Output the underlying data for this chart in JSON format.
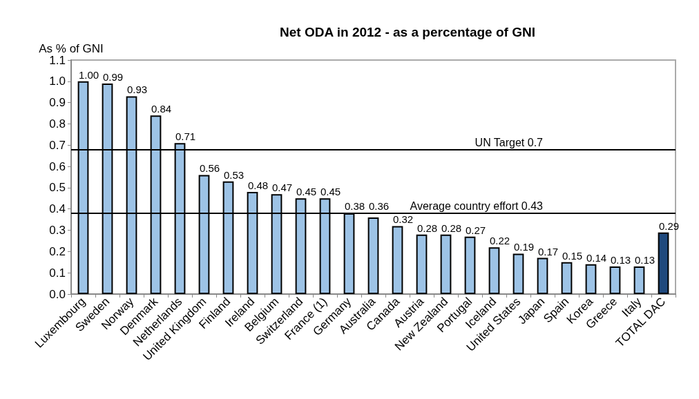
{
  "chart_data": {
    "type": "bar",
    "title": "Net ODA in 2012 - as a percentage of GNI",
    "ylabel": "As % of GNI",
    "categories": [
      "Luxembourg",
      "Sweden",
      "Norway",
      "Denmark",
      "Netherlands",
      "United Kingdom",
      "Finland",
      "Ireland",
      "Belgium",
      "Switzerland",
      "France (1)",
      "Germany",
      "Australia",
      "Canada",
      "Austria",
      "New Zealand",
      "Portugal",
      "Iceland",
      "United States",
      "Japan",
      "Spain",
      "Korea",
      "Greece",
      "Italy",
      "TOTAL DAC"
    ],
    "values": [
      1.0,
      0.99,
      0.93,
      0.84,
      0.71,
      0.56,
      0.53,
      0.48,
      0.47,
      0.45,
      0.45,
      0.38,
      0.36,
      0.32,
      0.28,
      0.28,
      0.27,
      0.22,
      0.19,
      0.17,
      0.15,
      0.14,
      0.13,
      0.13,
      0.29
    ],
    "value_labels": [
      "1.00",
      "0.99",
      "0.93",
      "0.84",
      "0.71",
      "0.56",
      "0.53",
      "0.48",
      "0.47",
      "0.45",
      "0.45",
      "0.38",
      "0.36",
      "0.32",
      "0.28",
      "0.28",
      "0.27",
      "0.22",
      "0.19",
      "0.17",
      "0.15",
      "0.14",
      "0.13",
      "0.13",
      "0.29"
    ],
    "colors": [
      "#9dc3e6",
      "#9dc3e6",
      "#9dc3e6",
      "#9dc3e6",
      "#9dc3e6",
      "#9dc3e6",
      "#9dc3e6",
      "#9dc3e6",
      "#9dc3e6",
      "#9dc3e6",
      "#9dc3e6",
      "#9dc3e6",
      "#9dc3e6",
      "#9dc3e6",
      "#9dc3e6",
      "#9dc3e6",
      "#9dc3e6",
      "#9dc3e6",
      "#9dc3e6",
      "#9dc3e6",
      "#9dc3e6",
      "#9dc3e6",
      "#9dc3e6",
      "#9dc3e6",
      "#1f497d"
    ],
    "ylim": [
      0,
      1.1
    ],
    "yticks": [
      "0.0",
      0.1,
      0.2,
      0.3,
      0.4,
      0.5,
      0.6,
      0.7,
      0.8,
      0.9,
      "1.0",
      1.1
    ],
    "ref_lines": [
      {
        "axis": "y",
        "value": 0.68,
        "label": "UN Target 0.7",
        "color": "#000000"
      },
      {
        "axis": "y",
        "value": 0.38,
        "label": "Average country effort 0.43",
        "color": "#000000"
      }
    ],
    "grid": false
  }
}
